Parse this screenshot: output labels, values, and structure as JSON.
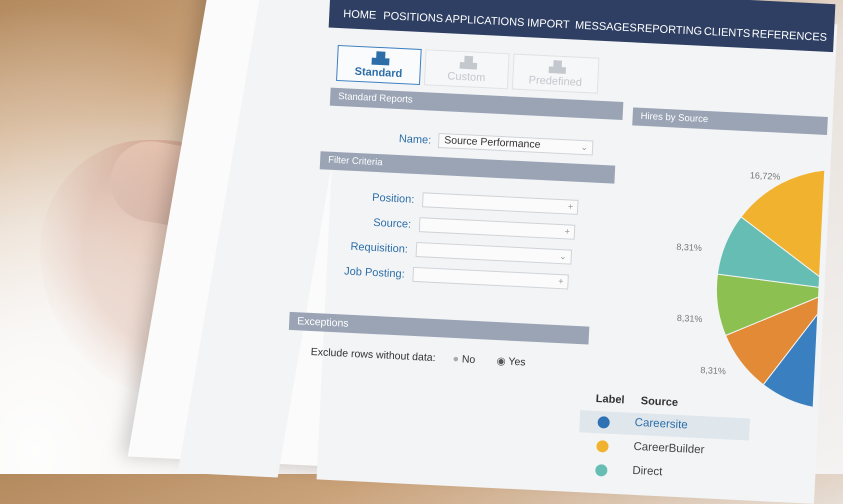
{
  "nav": {
    "items": [
      "HOME",
      "POSITIONS",
      "APPLICATIONS",
      "IMPORT",
      "MESSAGES",
      "REPORTING",
      "CLIENTS",
      "REFERENCES"
    ]
  },
  "tabs": [
    {
      "label": "Standard",
      "icon": "bar-chart-icon",
      "active": true
    },
    {
      "label": "Custom",
      "icon": "custom-chart-icon",
      "active": false
    },
    {
      "label": "Predefined",
      "icon": "predefined-chart-icon",
      "active": false
    }
  ],
  "standard_reports": {
    "header": "Standard Reports",
    "name_label": "Name:",
    "name_value": "Source Performance"
  },
  "filter": {
    "header": "Filter Criteria",
    "fields": [
      {
        "label": "Position:",
        "control": "plus"
      },
      {
        "label": "Source:",
        "control": "plus"
      },
      {
        "label": "Requisition:",
        "control": "dropdown"
      },
      {
        "label": "Job Posting:",
        "control": "plus"
      }
    ]
  },
  "exceptions": {
    "header": "Exceptions",
    "exclude_label": "Exclude rows without data:",
    "options": [
      "No",
      "Yes"
    ],
    "selected": "Yes"
  },
  "chart": {
    "header": "Hires by Source",
    "slices": [
      {
        "label": "",
        "value": 18,
        "color": "#3a7fbf",
        "source": "Careersite"
      },
      {
        "label": "8,31%",
        "value": 8.31,
        "color": "#e28a36"
      },
      {
        "label": "8,31%",
        "value": 8.31,
        "color": "#8cc152"
      },
      {
        "label": "8,31%",
        "value": 8.31,
        "color": "#66bdb4",
        "source": "Direct"
      },
      {
        "label": "16,72%",
        "value": 16.72,
        "color": "#f1b32f",
        "source": "CareerBuilder"
      }
    ]
  },
  "legend": {
    "col_label": "Label",
    "col_source": "Source",
    "rows": [
      {
        "source": "Careersite",
        "color": "#2f72b4",
        "selected": true
      },
      {
        "source": "CareerBuilder",
        "color": "#f1b32f",
        "selected": false
      },
      {
        "source": "Direct",
        "color": "#66bdb4",
        "selected": false
      }
    ]
  }
}
